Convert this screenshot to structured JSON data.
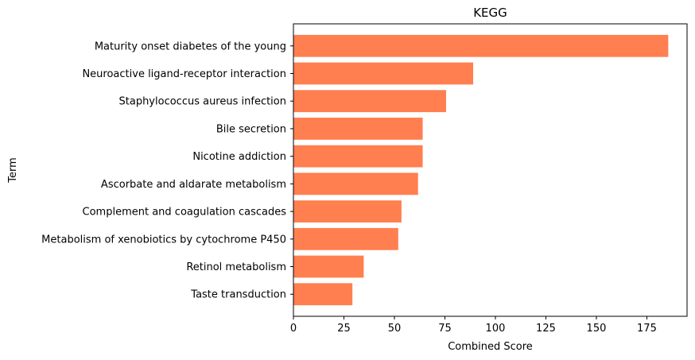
{
  "chart_data": {
    "type": "bar",
    "orientation": "horizontal",
    "title": "KEGG",
    "xlabel": "Combined Score",
    "ylabel": "Term",
    "categories": [
      "Maturity onset diabetes of the young",
      "Neuroactive ligand-receptor interaction",
      "Staphylococcus aureus infection",
      "Bile secretion",
      "Nicotine addiction",
      "Ascorbate and aldarate metabolism",
      "Complement and coagulation cascades",
      "Metabolism of xenobiotics by cytochrome P450",
      "Retinol metabolism",
      "Taste transduction"
    ],
    "values": [
      185.6,
      89.0,
      75.6,
      64.0,
      64.0,
      61.7,
      53.5,
      51.9,
      34.8,
      29.2
    ],
    "xlim": [
      0,
      194.9
    ],
    "xticks": [
      0,
      25,
      50,
      75,
      100,
      125,
      150,
      175
    ],
    "grid": false,
    "bar_color": "#ff7f50"
  }
}
